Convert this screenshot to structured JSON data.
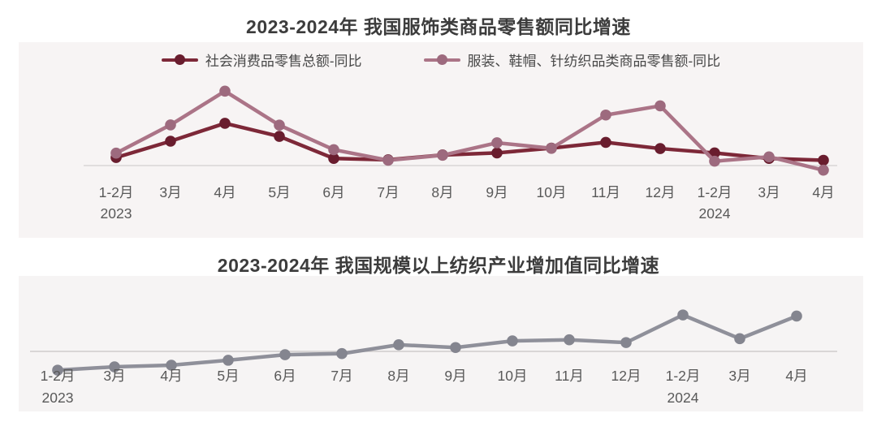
{
  "page": {
    "background": "#ffffff"
  },
  "chart_data": [
    {
      "type": "line",
      "title": "2023-2024年 我国服饰类商品零售额同比增速",
      "unit": "%",
      "categories": [
        "1-2月",
        "3月",
        "4月",
        "5月",
        "6月",
        "7月",
        "8月",
        "9月",
        "10月",
        "11月",
        "12月",
        "1-2月",
        "3月",
        "4月"
      ],
      "year_labels": [
        {
          "index": 0,
          "text": "2023"
        },
        {
          "index": 11,
          "text": "2024"
        }
      ],
      "series": [
        {
          "name": "社会消费品零售总额-同比",
          "color": "#7d2838",
          "marker_color": "#691d2e",
          "values": [
            3.5,
            10.6,
            18.4,
            12.7,
            3.1,
            2.5,
            4.6,
            5.5,
            7.6,
            10.1,
            7.4,
            5.5,
            3.1,
            2.3
          ]
        },
        {
          "name": "服装、鞋帽、针纺织品类商品零售额-同比",
          "color": "#ab7487",
          "marker_color": "#9d6a7e",
          "values": [
            5.4,
            17.7,
            32.4,
            17.6,
            6.9,
            2.3,
            4.5,
            9.9,
            7.5,
            22.0,
            26.0,
            1.9,
            3.8,
            -2.0
          ]
        }
      ],
      "xlabel": "",
      "ylabel": "",
      "ylim": [
        -6,
        36
      ],
      "grid": false,
      "legend_position": "top",
      "colors": {
        "panel_bg": "#f7f4f4",
        "axis_line": "#d9d5d5",
        "label_text": "#595959",
        "title_text": "#3c3c3c",
        "legend_text": "#484848"
      }
    },
    {
      "type": "line",
      "title": "2023-2024年 我国规模以上纺织产业增加值同比增速",
      "unit": "%",
      "categories": [
        "1-2月",
        "3月",
        "4月",
        "5月",
        "6月",
        "7月",
        "8月",
        "9月",
        "10月",
        "11月",
        "12月",
        "1-2月",
        "3月",
        "4月"
      ],
      "year_labels": [
        {
          "index": 0,
          "text": "2023"
        },
        {
          "index": 11,
          "text": "2024"
        }
      ],
      "series": [
        {
          "color": "#8f909a",
          "marker_color": "#84858f",
          "values": [
            -3.4,
            -2.8,
            -2.5,
            -1.6,
            -0.6,
            -0.4,
            1.2,
            0.7,
            1.9,
            2.1,
            1.6,
            6.6,
            2.3,
            6.4
          ]
        }
      ],
      "xlabel": "",
      "ylabel": "",
      "ylim": [
        -5,
        9
      ],
      "grid": false,
      "legend_position": "none",
      "colors": {
        "panel_bg": "#f6f4f4",
        "axis_line": "#cfcccc",
        "label_text": "#595959",
        "title_text": "#3c3c3c"
      }
    }
  ]
}
